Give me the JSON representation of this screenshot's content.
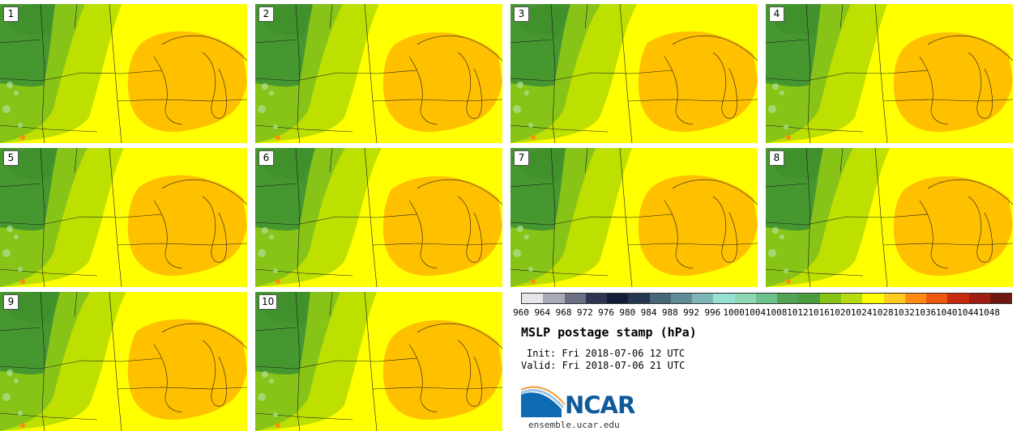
{
  "panels": [
    {
      "label": "1"
    },
    {
      "label": "2"
    },
    {
      "label": "3"
    },
    {
      "label": "4"
    },
    {
      "label": "5"
    },
    {
      "label": "6"
    },
    {
      "label": "7"
    },
    {
      "label": "8"
    },
    {
      "label": "9"
    },
    {
      "label": "10"
    }
  ],
  "colorbar": {
    "ticks": [
      "960",
      "964",
      "968",
      "972",
      "976",
      "980",
      "984",
      "988",
      "992",
      "996",
      "1000",
      "1004",
      "1008",
      "1012",
      "1016",
      "1020",
      "1024",
      "1028",
      "1032",
      "1036",
      "1040",
      "1044",
      "1048"
    ],
    "colors": [
      "#e4e6ec",
      "#a9aab8",
      "#6b6f84",
      "#2e3550",
      "#141d38",
      "#26384f",
      "#466878",
      "#5f8d96",
      "#7db4b8",
      "#97e0d4",
      "#8cd8b4",
      "#6cc28c",
      "#52a454",
      "#4a9c3c",
      "#88c418",
      "#b4dc10",
      "#ffff00",
      "#ffcc20",
      "#ff8c10",
      "#f05810",
      "#c82a10",
      "#a01e12",
      "#701810"
    ]
  },
  "title": "MSLP postage stamp (hPa)",
  "init": "Init: Fri 2018-07-06 12 UTC",
  "valid": "Valid: Fri 2018-07-06 21 UTC",
  "logo": {
    "text": "NCAR",
    "site": "ensemble.ucar.edu"
  },
  "colors": {
    "green_dark": "#46972f",
    "green": "#88c418",
    "green_light": "#bde000",
    "yellow": "#ffff00",
    "orange": "#ffc000"
  }
}
